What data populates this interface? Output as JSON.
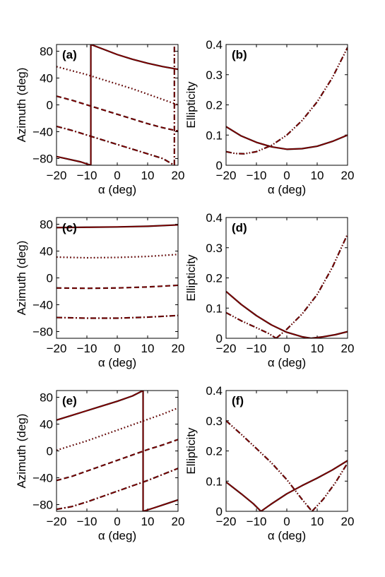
{
  "line_color": "#000000",
  "overlay_color": "#8b0000",
  "chart_data": [
    {
      "id": "a",
      "type": "line",
      "panel_label": "(a)",
      "title": "",
      "xlabel": "α (deg)",
      "ylabel": "Azimuth (deg)",
      "xlim": [
        -20,
        20
      ],
      "ylim": [
        -90,
        90
      ],
      "xticks": [
        -20,
        -10,
        0,
        10,
        20
      ],
      "yticks": [
        -80,
        -40,
        0,
        40,
        80
      ],
      "series": [
        {
          "style": "solid",
          "segments": [
            [
              [
                -20,
                -77
              ],
              [
                -16,
                -81
              ],
              [
                -12,
                -85
              ],
              [
                -8.7,
                -90
              ]
            ],
            [
              [
                -8.7,
                -90
              ],
              [
                -8.7,
                90
              ]
            ],
            [
              [
                -8.7,
                90
              ],
              [
                -4,
                82
              ],
              [
                0,
                75
              ],
              [
                5,
                68
              ],
              [
                10,
                62
              ],
              [
                15,
                57
              ],
              [
                20,
                53
              ]
            ]
          ]
        },
        {
          "style": "dotted",
          "segments": [
            [
              [
                -20,
                57
              ],
              [
                -15,
                51
              ],
              [
                -10,
                45
              ],
              [
                -5,
                38
              ],
              [
                0,
                31
              ],
              [
                5,
                24
              ],
              [
                10,
                16
              ],
              [
                15,
                8
              ],
              [
                20,
                0
              ]
            ]
          ]
        },
        {
          "style": "dashed",
          "segments": [
            [
              [
                -20,
                13
              ],
              [
                -15,
                7
              ],
              [
                -10,
                0
              ],
              [
                -5,
                -7
              ],
              [
                0,
                -14
              ],
              [
                5,
                -21
              ],
              [
                10,
                -28
              ],
              [
                15,
                -34
              ],
              [
                20,
                -39
              ]
            ]
          ]
        },
        {
          "style": "dashdot",
          "segments": [
            [
              [
                -20,
                -32
              ],
              [
                -15,
                -38
              ],
              [
                -10,
                -45
              ],
              [
                -5,
                -52
              ],
              [
                0,
                -59
              ],
              [
                5,
                -66
              ],
              [
                10,
                -73
              ],
              [
                15,
                -80
              ],
              [
                18.8,
                -90
              ]
            ],
            [
              [
                18.8,
                -90
              ],
              [
                18.8,
                90
              ]
            ]
          ]
        }
      ]
    },
    {
      "id": "b",
      "type": "line",
      "panel_label": "(b)",
      "title": "",
      "xlabel": "α (deg)",
      "ylabel": "Ellipticity",
      "xlim": [
        -20,
        20
      ],
      "ylim": [
        0,
        0.4
      ],
      "xticks": [
        -20,
        -10,
        0,
        10,
        20
      ],
      "yticks": [
        "0",
        "0.1",
        "0.2",
        "0.3",
        "0.4"
      ],
      "series": [
        {
          "style": "solid",
          "segments": [
            [
              [
                -20,
                0.128
              ],
              [
                -15,
                0.097
              ],
              [
                -10,
                0.076
              ],
              [
                -5,
                0.061
              ],
              [
                0,
                0.053
              ],
              [
                5,
                0.055
              ],
              [
                10,
                0.063
              ],
              [
                15,
                0.079
              ],
              [
                20,
                0.1
              ]
            ]
          ]
        },
        {
          "style": "dashdotdot",
          "segments": [
            [
              [
                -20,
                0.045
              ],
              [
                -17,
                0.039
              ],
              [
                -14,
                0.038
              ],
              [
                -10,
                0.045
              ],
              [
                -5,
                0.066
              ],
              [
                0,
                0.1
              ],
              [
                5,
                0.148
              ],
              [
                10,
                0.21
              ],
              [
                15,
                0.29
              ],
              [
                20,
                0.39
              ]
            ]
          ]
        }
      ]
    },
    {
      "id": "c",
      "type": "line",
      "panel_label": "(c)",
      "title": "",
      "xlabel": "α (deg)",
      "ylabel": "Azimuth (deg)",
      "xlim": [
        -20,
        20
      ],
      "ylim": [
        -90,
        90
      ],
      "xticks": [
        -20,
        -10,
        0,
        10,
        20
      ],
      "yticks": [
        -80,
        -40,
        0,
        40,
        80
      ],
      "series": [
        {
          "style": "solid",
          "segments": [
            [
              [
                -20,
                75
              ],
              [
                -10,
                75.5
              ],
              [
                0,
                76
              ],
              [
                10,
                77
              ],
              [
                20,
                79
              ]
            ]
          ]
        },
        {
          "style": "dotted",
          "segments": [
            [
              [
                -20,
                31
              ],
              [
                -10,
                30
              ],
              [
                0,
                30.5
              ],
              [
                10,
                32
              ],
              [
                20,
                35
              ]
            ]
          ]
        },
        {
          "style": "dashed",
          "segments": [
            [
              [
                -20,
                -15
              ],
              [
                -10,
                -15.5
              ],
              [
                0,
                -15
              ],
              [
                10,
                -13.5
              ],
              [
                20,
                -11
              ]
            ]
          ]
        },
        {
          "style": "dashdot",
          "segments": [
            [
              [
                -20,
                -59
              ],
              [
                -10,
                -60
              ],
              [
                0,
                -60
              ],
              [
                10,
                -58.5
              ],
              [
                20,
                -56
              ]
            ]
          ]
        }
      ]
    },
    {
      "id": "d",
      "type": "line",
      "panel_label": "(d)",
      "title": "",
      "xlabel": "α (deg)",
      "ylabel": "Ellipticity",
      "xlim": [
        -20,
        20
      ],
      "ylim": [
        0,
        0.4
      ],
      "xticks": [
        -20,
        -10,
        0,
        10,
        20
      ],
      "yticks": [
        "0",
        "0.1",
        "0.2",
        "0.3",
        "0.4"
      ],
      "series": [
        {
          "style": "solid",
          "segments": [
            [
              [
                -20,
                0.155
              ],
              [
                -15,
                0.112
              ],
              [
                -10,
                0.075
              ],
              [
                -5,
                0.044
              ],
              [
                0,
                0.02
              ],
              [
                5,
                0.005
              ],
              [
                8,
                0
              ],
              [
                12,
                0.005
              ],
              [
                16,
                0.012
              ],
              [
                20,
                0.022
              ]
            ]
          ]
        },
        {
          "style": "dashdotdot",
          "segments": [
            [
              [
                -20,
                0.085
              ],
              [
                -15,
                0.058
              ],
              [
                -10,
                0.035
              ],
              [
                -6,
                0.016
              ],
              [
                -3.5,
                0
              ]
            ],
            [
              [
                -3.5,
                0
              ],
              [
                0,
                0.03
              ],
              [
                5,
                0.08
              ],
              [
                10,
                0.145
              ],
              [
                15,
                0.235
              ],
              [
                20,
                0.345
              ]
            ]
          ]
        }
      ]
    },
    {
      "id": "e",
      "type": "line",
      "panel_label": "(e)",
      "title": "",
      "xlabel": "α (deg)",
      "ylabel": "Azimuth (deg)",
      "xlim": [
        -20,
        20
      ],
      "ylim": [
        -90,
        90
      ],
      "xticks": [
        -20,
        -10,
        0,
        10,
        20
      ],
      "yticks": [
        -80,
        -40,
        0,
        40,
        80
      ],
      "series": [
        {
          "style": "solid",
          "segments": [
            [
              [
                -20,
                46
              ],
              [
                -15,
                53
              ],
              [
                -10,
                60
              ],
              [
                -5,
                67
              ],
              [
                0,
                74
              ],
              [
                5,
                82
              ],
              [
                8.5,
                90
              ]
            ],
            [
              [
                8.5,
                90
              ],
              [
                8.5,
                -90
              ]
            ],
            [
              [
                8.5,
                -90
              ],
              [
                12,
                -85
              ],
              [
                16,
                -79
              ],
              [
                20,
                -73
              ]
            ]
          ]
        },
        {
          "style": "dotted",
          "segments": [
            [
              [
                -20,
                1
              ],
              [
                -15,
                8
              ],
              [
                -10,
                15
              ],
              [
                -5,
                23
              ],
              [
                0,
                31
              ],
              [
                5,
                39
              ],
              [
                10,
                47
              ],
              [
                15,
                55
              ],
              [
                20,
                64
              ]
            ]
          ]
        },
        {
          "style": "dashed",
          "segments": [
            [
              [
                -20,
                -44
              ],
              [
                -15,
                -38
              ],
              [
                -10,
                -30
              ],
              [
                -5,
                -22
              ],
              [
                0,
                -14
              ],
              [
                5,
                -6
              ],
              [
                10,
                2
              ],
              [
                15,
                9
              ],
              [
                20,
                17
              ]
            ]
          ]
        },
        {
          "style": "dashdot",
          "segments": [
            [
              [
                -20,
                -87
              ],
              [
                -15,
                -83
              ],
              [
                -10,
                -76
              ],
              [
                -5,
                -68
              ],
              [
                0,
                -60
              ],
              [
                5,
                -52
              ],
              [
                10,
                -44
              ],
              [
                15,
                -35
              ],
              [
                20,
                -26
              ]
            ]
          ]
        }
      ]
    },
    {
      "id": "f",
      "type": "line",
      "panel_label": "(f)",
      "title": "",
      "xlabel": "α (deg)",
      "ylabel": "Ellipticity",
      "xlim": [
        -20,
        20
      ],
      "ylim": [
        0,
        0.4
      ],
      "xticks": [
        -20,
        -10,
        0,
        10,
        20
      ],
      "yticks": [
        "0",
        "0.1",
        "0.2",
        "0.3",
        "0.4"
      ],
      "series": [
        {
          "style": "solid",
          "segments": [
            [
              [
                -20,
                0.097
              ],
              [
                -15,
                0.058
              ],
              [
                -11,
                0.025
              ],
              [
                -8.5,
                0
              ]
            ],
            [
              [
                -8.5,
                0
              ],
              [
                -5,
                0.025
              ],
              [
                0,
                0.058
              ],
              [
                5,
                0.085
              ],
              [
                10,
                0.11
              ],
              [
                15,
                0.137
              ],
              [
                20,
                0.168
              ]
            ]
          ]
        },
        {
          "style": "dashdotdot",
          "segments": [
            [
              [
                -20,
                0.3
              ],
              [
                -15,
                0.255
              ],
              [
                -10,
                0.208
              ],
              [
                -5,
                0.16
              ],
              [
                0,
                0.105
              ],
              [
                5,
                0.04
              ],
              [
                8.3,
                0
              ]
            ],
            [
              [
                8.3,
                0
              ],
              [
                12,
                0.04
              ],
              [
                16,
                0.095
              ],
              [
                20,
                0.16
              ]
            ]
          ]
        }
      ]
    }
  ]
}
